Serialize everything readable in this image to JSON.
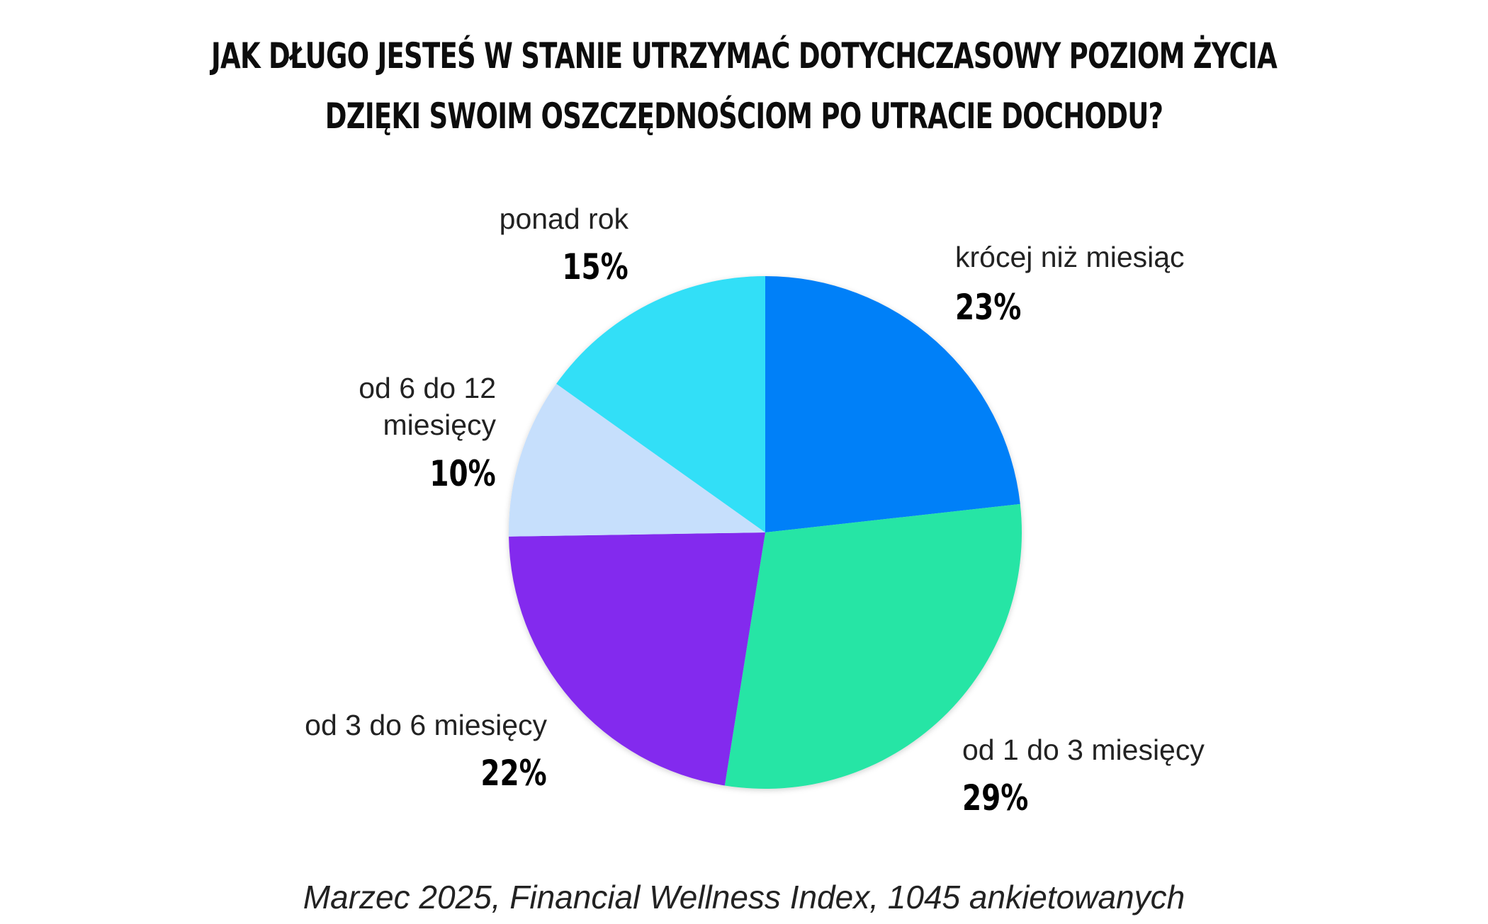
{
  "chart_data": {
    "type": "pie",
    "title_lines": [
      "JAK DŁUGO JESTEŚ W STANIE UTRZYMAĆ DOTYCHCZASOWY POZIOM ŻYCIA",
      "DZIĘKI SWOIM OSZCZĘDNOŚCIOM PO UTRACIE DOCHODU?"
    ],
    "start": "12 o'clock",
    "direction": "clockwise",
    "slices": [
      {
        "label": "krócej niż miesiąc",
        "label_lines": [
          "krócej niż miesiąc"
        ],
        "value": 23,
        "value_label": "23%",
        "color": "#0080F8"
      },
      {
        "label": "od 1 do 3 miesięcy",
        "label_lines": [
          "od 1 do 3 miesięcy"
        ],
        "value": 29,
        "value_label": "29%",
        "color": "#28E5A5"
      },
      {
        "label": "od 3 do 6 miesięcy",
        "label_lines": [
          "od 3 do 6 miesięcy"
        ],
        "value": 22,
        "value_label": "22%",
        "color": "#832CEE"
      },
      {
        "label": "od 6 do 12 miesięcy",
        "label_lines": [
          "od 6 do 12",
          "miesięcy"
        ],
        "value": 10,
        "value_label": "10%",
        "color": "#C6DFFC"
      },
      {
        "label": "ponad rok",
        "label_lines": [
          "ponad rok"
        ],
        "value": 15,
        "value_label": "15%",
        "color": "#30DFF7"
      }
    ],
    "source": "Marzec 2025, Financial Wellness Index, 1045 ankietowanych"
  }
}
